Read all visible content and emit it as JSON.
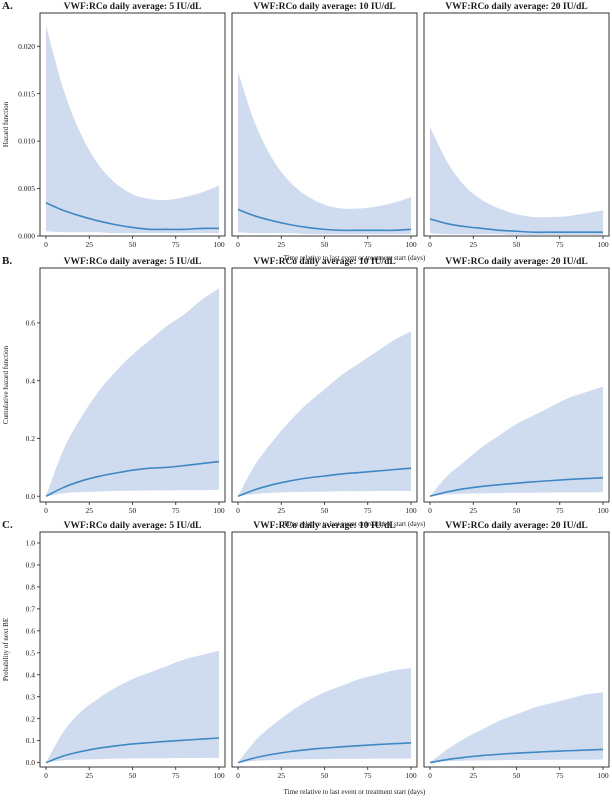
{
  "chart_data": {
    "type": "line",
    "x_ticks": [
      0,
      25,
      50,
      75,
      100
    ],
    "xlim": [
      0,
      100
    ],
    "rows": [
      {
        "label": "A.",
        "ylabel": "Hazard function",
        "xlabel": "Time relative to last event or treatment start (days)",
        "ylim": [
          0,
          0.0235
        ],
        "y_ticks": [
          "0.000",
          "0.005",
          "0.010",
          "0.015",
          "0.020"
        ],
        "y_tick_values": [
          0,
          0.005,
          0.01,
          0.015,
          0.02
        ],
        "panels": [
          {
            "title": "VWF:RCo daily average: 5 IU/dL",
            "x": [
              0,
              10,
              20,
              30,
              40,
              50,
              60,
              70,
              80,
              90,
              100
            ],
            "estimate": [
              0.0035,
              0.0027,
              0.0021,
              0.0016,
              0.0012,
              0.0009,
              0.0007,
              0.0007,
              0.0007,
              0.0008,
              0.0008
            ],
            "upper": [
              0.0222,
              0.0155,
              0.0108,
              0.0076,
              0.0056,
              0.0044,
              0.0039,
              0.0038,
              0.0041,
              0.0046,
              0.0053
            ],
            "lower": [
              0.0005,
              0.0004,
              0.0004,
              0.0004,
              0.0003,
              0.0003,
              0.0003,
              0.0003,
              0.0003,
              0.0003,
              0.0003
            ]
          },
          {
            "title": "VWF:RCo daily average: 10 IU/dL",
            "x": [
              0,
              10,
              20,
              30,
              40,
              50,
              60,
              70,
              80,
              90,
              100
            ],
            "estimate": [
              0.0028,
              0.0021,
              0.0016,
              0.0012,
              0.0009,
              0.0007,
              0.0006,
              0.0006,
              0.0006,
              0.0006,
              0.0007
            ],
            "upper": [
              0.0173,
              0.0118,
              0.0081,
              0.0057,
              0.0042,
              0.0033,
              0.0029,
              0.0029,
              0.0031,
              0.0035,
              0.0041
            ],
            "lower": [
              0.0004,
              0.0003,
              0.0003,
              0.0003,
              0.0002,
              0.0002,
              0.0002,
              0.0002,
              0.0002,
              0.0002,
              0.0002
            ]
          },
          {
            "title": "VWF:RCo daily average: 20 IU/dL",
            "x": [
              0,
              10,
              20,
              30,
              40,
              50,
              60,
              70,
              80,
              90,
              100
            ],
            "estimate": [
              0.0018,
              0.0013,
              0.001,
              0.0008,
              0.0006,
              0.0005,
              0.0004,
              0.0004,
              0.0004,
              0.0004,
              0.0004
            ],
            "upper": [
              0.0115,
              0.0078,
              0.0053,
              0.0038,
              0.0029,
              0.0023,
              0.002,
              0.002,
              0.0021,
              0.0024,
              0.0027
            ],
            "lower": [
              0.0003,
              0.0002,
              0.0002,
              0.0002,
              0.0002,
              0.0001,
              0.0001,
              0.0001,
              0.0001,
              0.0001,
              0.0001
            ]
          }
        ]
      },
      {
        "label": "B.",
        "ylabel": "Cumulative hazard function",
        "xlabel": "Time relative to last event or treatment start (days)",
        "ylim": [
          -0.02,
          0.79
        ],
        "y_ticks": [
          "0.0",
          "0.2",
          "0.4",
          "0.6"
        ],
        "y_tick_values": [
          0,
          0.2,
          0.4,
          0.6
        ],
        "panels": [
          {
            "title": "VWF:RCo daily average: 5 IU/dL",
            "x": [
              0,
              10,
              20,
              30,
              40,
              50,
              60,
              70,
              80,
              90,
              100
            ],
            "estimate": [
              0.0,
              0.03,
              0.052,
              0.068,
              0.08,
              0.09,
              0.097,
              0.1,
              0.106,
              0.113,
              0.12
            ],
            "upper": [
              0.0,
              0.16,
              0.27,
              0.36,
              0.43,
              0.49,
              0.54,
              0.59,
              0.63,
              0.68,
              0.72
            ],
            "lower": [
              0.0,
              0.01,
              0.014,
              0.016,
              0.018,
              0.019,
              0.02,
              0.02,
              0.021,
              0.021,
              0.022
            ]
          },
          {
            "title": "VWF:RCo daily average: 10 IU/dL",
            "x": [
              0,
              10,
              20,
              30,
              40,
              50,
              60,
              70,
              80,
              90,
              100
            ],
            "estimate": [
              0.0,
              0.023,
              0.04,
              0.053,
              0.063,
              0.07,
              0.077,
              0.082,
              0.087,
              0.092,
              0.097
            ],
            "upper": [
              0.0,
              0.11,
              0.19,
              0.26,
              0.32,
              0.37,
              0.42,
              0.46,
              0.5,
              0.54,
              0.57
            ],
            "lower": [
              0.0,
              0.008,
              0.012,
              0.014,
              0.015,
              0.016,
              0.017,
              0.017,
              0.018,
              0.018,
              0.018
            ]
          },
          {
            "title": "VWF:RCo daily average: 20 IU/dL",
            "x": [
              0,
              10,
              20,
              30,
              40,
              50,
              60,
              70,
              80,
              90,
              100
            ],
            "estimate": [
              0.0,
              0.015,
              0.026,
              0.034,
              0.04,
              0.045,
              0.05,
              0.054,
              0.058,
              0.061,
              0.064
            ],
            "upper": [
              0.0,
              0.07,
              0.12,
              0.17,
              0.21,
              0.25,
              0.28,
              0.31,
              0.34,
              0.36,
              0.38
            ],
            "lower": [
              0.0,
              0.006,
              0.009,
              0.01,
              0.011,
              0.012,
              0.012,
              0.013,
              0.013,
              0.013,
              0.014
            ]
          }
        ]
      },
      {
        "label": "C.",
        "ylabel": "Probability of next BE",
        "xlabel": "Time relative to last event or treatment start (days)",
        "ylim": [
          -0.02,
          1.05
        ],
        "y_ticks": [
          "0.0",
          "0.1",
          "0.2",
          "0.3",
          "0.4",
          "0.5",
          "0.6",
          "0.7",
          "0.8",
          "0.9",
          "1.0"
        ],
        "y_tick_values": [
          0,
          0.1,
          0.2,
          0.3,
          0.4,
          0.5,
          0.6,
          0.7,
          0.8,
          0.9,
          1.0
        ],
        "panels": [
          {
            "title": "VWF:RCo daily average: 5 IU/dL",
            "x": [
              0,
              10,
              20,
              30,
              40,
              50,
              60,
              70,
              80,
              90,
              100
            ],
            "estimate": [
              0.0,
              0.03,
              0.05,
              0.065,
              0.076,
              0.085,
              0.091,
              0.097,
              0.102,
              0.107,
              0.112
            ],
            "upper": [
              0.0,
              0.14,
              0.23,
              0.29,
              0.34,
              0.38,
              0.41,
              0.44,
              0.47,
              0.49,
              0.51
            ],
            "lower": [
              0.0,
              0.01,
              0.014,
              0.016,
              0.018,
              0.019,
              0.02,
              0.02,
              0.021,
              0.021,
              0.022
            ]
          },
          {
            "title": "VWF:RCo daily average: 10 IU/dL",
            "x": [
              0,
              10,
              20,
              30,
              40,
              50,
              60,
              70,
              80,
              90,
              100
            ],
            "estimate": [
              0.0,
              0.022,
              0.038,
              0.05,
              0.059,
              0.066,
              0.072,
              0.077,
              0.082,
              0.086,
              0.09
            ],
            "upper": [
              0.0,
              0.1,
              0.17,
              0.23,
              0.28,
              0.32,
              0.35,
              0.38,
              0.4,
              0.42,
              0.43
            ],
            "lower": [
              0.0,
              0.008,
              0.012,
              0.014,
              0.015,
              0.016,
              0.017,
              0.017,
              0.018,
              0.018,
              0.018
            ]
          },
          {
            "title": "VWF:RCo daily average: 20 IU/dL",
            "x": [
              0,
              10,
              20,
              30,
              40,
              50,
              60,
              70,
              80,
              90,
              100
            ],
            "estimate": [
              0.0,
              0.014,
              0.024,
              0.032,
              0.038,
              0.043,
              0.047,
              0.051,
              0.054,
              0.057,
              0.06
            ],
            "upper": [
              0.0,
              0.06,
              0.11,
              0.15,
              0.19,
              0.22,
              0.25,
              0.27,
              0.29,
              0.31,
              0.32
            ],
            "lower": [
              0.0,
              0.006,
              0.009,
              0.01,
              0.011,
              0.012,
              0.012,
              0.013,
              0.013,
              0.013,
              0.014
            ]
          }
        ]
      }
    ]
  }
}
